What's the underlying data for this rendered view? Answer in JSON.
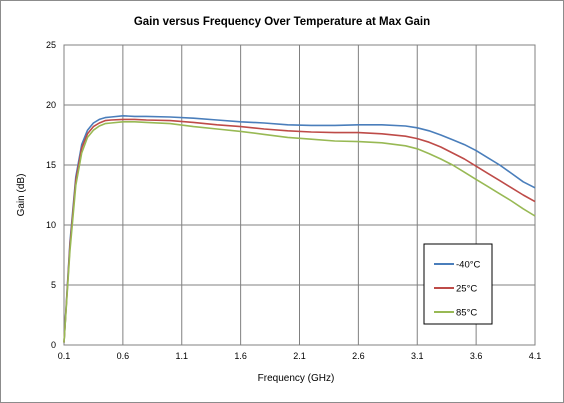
{
  "chart_data": {
    "type": "line",
    "title": "Gain versus Frequency Over Temperature at Max Gain",
    "xlabel": "Frequency (GHz)",
    "ylabel": "Gain (dB)",
    "xlim": [
      0.1,
      4.1
    ],
    "ylim": [
      0,
      25
    ],
    "x_ticks": [
      "0.1",
      "0.6",
      "1.1",
      "1.6",
      "2.1",
      "2.6",
      "3.1",
      "3.6",
      "4.1"
    ],
    "y_ticks": [
      "0",
      "5",
      "10",
      "15",
      "20",
      "25"
    ],
    "grid": true,
    "legend_position": "bottom-right",
    "series": [
      {
        "name": "-40°C",
        "color": "#4a7ebb",
        "x": [
          0.1,
          0.15,
          0.2,
          0.25,
          0.3,
          0.35,
          0.4,
          0.45,
          0.5,
          0.6,
          0.7,
          0.8,
          1.0,
          1.2,
          1.4,
          1.6,
          1.8,
          2.0,
          2.2,
          2.4,
          2.6,
          2.8,
          3.0,
          3.1,
          3.2,
          3.3,
          3.4,
          3.5,
          3.6,
          3.7,
          3.8,
          3.9,
          4.0,
          4.1
        ],
        "y": [
          0.2,
          8.5,
          14.0,
          16.7,
          17.9,
          18.5,
          18.8,
          18.95,
          19.0,
          19.1,
          19.05,
          19.05,
          19.0,
          18.9,
          18.75,
          18.6,
          18.5,
          18.35,
          18.3,
          18.3,
          18.35,
          18.35,
          18.25,
          18.1,
          17.85,
          17.5,
          17.1,
          16.7,
          16.2,
          15.6,
          15.0,
          14.3,
          13.6,
          13.1
        ]
      },
      {
        "name": "25°C",
        "color": "#be4b48",
        "x": [
          0.1,
          0.15,
          0.2,
          0.25,
          0.3,
          0.35,
          0.4,
          0.45,
          0.5,
          0.6,
          0.7,
          0.8,
          1.0,
          1.2,
          1.4,
          1.6,
          1.8,
          2.0,
          2.2,
          2.4,
          2.6,
          2.8,
          3.0,
          3.1,
          3.2,
          3.3,
          3.4,
          3.5,
          3.6,
          3.7,
          3.8,
          3.9,
          4.0,
          4.1
        ],
        "y": [
          0.2,
          8.2,
          13.7,
          16.4,
          17.6,
          18.2,
          18.5,
          18.7,
          18.75,
          18.8,
          18.8,
          18.75,
          18.7,
          18.55,
          18.35,
          18.2,
          18.0,
          17.85,
          17.75,
          17.7,
          17.7,
          17.6,
          17.4,
          17.2,
          16.9,
          16.5,
          16.0,
          15.5,
          14.9,
          14.3,
          13.7,
          13.1,
          12.5,
          11.95
        ]
      },
      {
        "name": "85°C",
        "color": "#98b954",
        "x": [
          0.1,
          0.15,
          0.2,
          0.25,
          0.3,
          0.35,
          0.4,
          0.45,
          0.5,
          0.6,
          0.7,
          0.8,
          1.0,
          1.2,
          1.4,
          1.6,
          1.8,
          2.0,
          2.2,
          2.4,
          2.6,
          2.8,
          3.0,
          3.1,
          3.2,
          3.3,
          3.4,
          3.5,
          3.6,
          3.7,
          3.8,
          3.9,
          4.0,
          4.1
        ],
        "y": [
          0.2,
          7.8,
          13.3,
          16.0,
          17.3,
          17.9,
          18.25,
          18.45,
          18.5,
          18.6,
          18.6,
          18.55,
          18.45,
          18.2,
          18.0,
          17.8,
          17.55,
          17.3,
          17.15,
          17.0,
          16.95,
          16.85,
          16.6,
          16.35,
          15.95,
          15.5,
          15.0,
          14.4,
          13.8,
          13.2,
          12.6,
          12.0,
          11.35,
          10.75
        ]
      }
    ]
  }
}
